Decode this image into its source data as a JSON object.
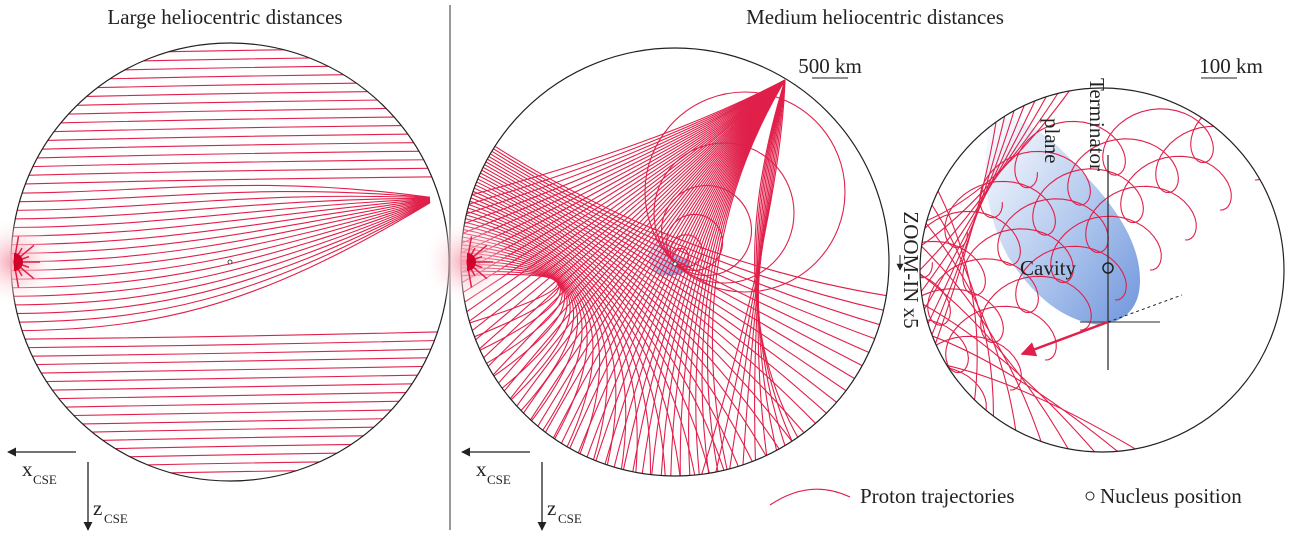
{
  "panels": [
    {
      "title": "Large heliocentric distances",
      "axis_x": "x",
      "axis_x_sub": "CSE",
      "axis_z": "z",
      "axis_z_sub": "CSE"
    },
    {
      "title": "Medium heliocentric distances",
      "scale_bar": "500 km",
      "axis_x": "x",
      "axis_x_sub": "CSE",
      "axis_z": "z",
      "axis_z_sub": "CSE"
    }
  ],
  "zoom": {
    "label": "ZOOM-IN x5",
    "scale_bar": "100 km",
    "terminator": [
      "Terminator",
      "plane"
    ],
    "cavity": "Cavity"
  },
  "legend": {
    "trajectories": "Proton trajectories",
    "nucleus": "Nucleus position"
  }
}
